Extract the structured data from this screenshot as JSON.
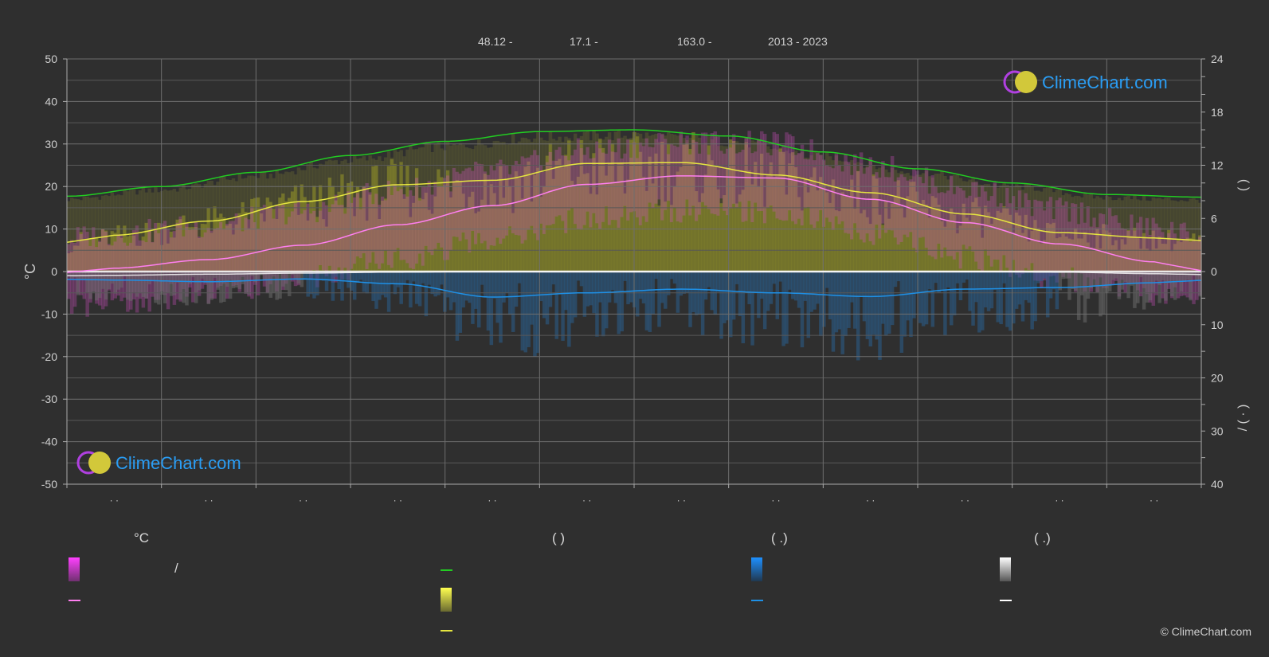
{
  "header": {
    "lat": "48.12 -",
    "lon": "17.1 -",
    "elev": "163.0 -",
    "years": "2013 - 2023"
  },
  "watermark": "ClimeChart.com",
  "copyright": "© ClimeChart.com",
  "colors": {
    "background": "#2f2f2f",
    "daylight": "#22cc22",
    "sunshine": "#e6e640",
    "temp_mean": "#ff7ff0",
    "rain": "#1e90e6",
    "snow": "#ffffff",
    "watermark": "#2a9df4"
  },
  "legend": {
    "temp_header": "°C",
    "sun_header": "(          )",
    "rain_header": "(    .)",
    "snow_header": "(    .)",
    "temp_range_sep": "/"
  },
  "chart_data": {
    "type": "line",
    "xlabel": "",
    "ylabel": "°C",
    "ylim": [
      -50,
      50
    ],
    "y_ticks": [
      "50",
      "40",
      "30",
      "20",
      "10",
      "0",
      "-10",
      "-20",
      "-30",
      "-40",
      "-50"
    ],
    "y2_ticks_top": [
      "24",
      "18",
      "12",
      "6",
      "0"
    ],
    "y2_ticks_bottom": [
      "10",
      "20",
      "30",
      "40"
    ],
    "y2_label_top": "(        )",
    "y2_label_bottom": "/ (  ·  )",
    "month_tick_labels": [
      "· ·",
      "· ·",
      "· ·",
      "· ·",
      "· ·",
      "· ·",
      "· ·",
      "· ·",
      "· ·",
      "· ·",
      "· ·",
      "· ·"
    ],
    "series": [
      {
        "key": "daylight_hours",
        "x": [
          0,
          1,
          2,
          3,
          4,
          5,
          6,
          7,
          8,
          9,
          10,
          11,
          12
        ],
        "values": [
          8.5,
          9.6,
          11.2,
          13.1,
          14.7,
          15.8,
          16.0,
          15.3,
          13.5,
          11.6,
          10.0,
          8.7,
          8.4
        ]
      },
      {
        "key": "sunshine_hours",
        "x": [
          0.5,
          1.5,
          2.5,
          3.5,
          4.5,
          5.5,
          6.5,
          7.5,
          8.5,
          9.5,
          10.5,
          11.5
        ],
        "values": [
          4.1,
          5.7,
          7.9,
          9.8,
          10.3,
          12.2,
          12.3,
          10.9,
          8.9,
          6.5,
          4.4,
          3.8
        ]
      },
      {
        "key": "temp_mean",
        "x": [
          0.5,
          1.5,
          2.5,
          3.5,
          4.5,
          5.5,
          6.5,
          7.5,
          8.5,
          9.5,
          10.5,
          11.5
        ],
        "values": [
          0.8,
          2.8,
          6.2,
          11.0,
          15.5,
          20.5,
          22.5,
          22.0,
          17.0,
          11.5,
          6.5,
          2.3
        ]
      },
      {
        "key": "rain_mean_mm",
        "x": [
          0.5,
          1.5,
          2.5,
          3.5,
          4.5,
          5.5,
          6.5,
          7.5,
          8.5,
          9.5,
          10.5,
          11.5
        ],
        "values": [
          1.6,
          1.9,
          1.4,
          2.3,
          4.8,
          4.0,
          3.3,
          4.0,
          4.7,
          3.3,
          3.0,
          2.1
        ]
      },
      {
        "key": "snow_mean_mm",
        "x": [
          0.5,
          1.5,
          2.5,
          3.5,
          4.5,
          5.5,
          6.5,
          7.5,
          8.5,
          9.5,
          10.5,
          11.5
        ],
        "values": [
          0.7,
          0.5,
          0.3,
          0.1,
          0,
          0,
          0,
          0,
          0,
          0,
          0.1,
          0.4
        ]
      }
    ]
  }
}
